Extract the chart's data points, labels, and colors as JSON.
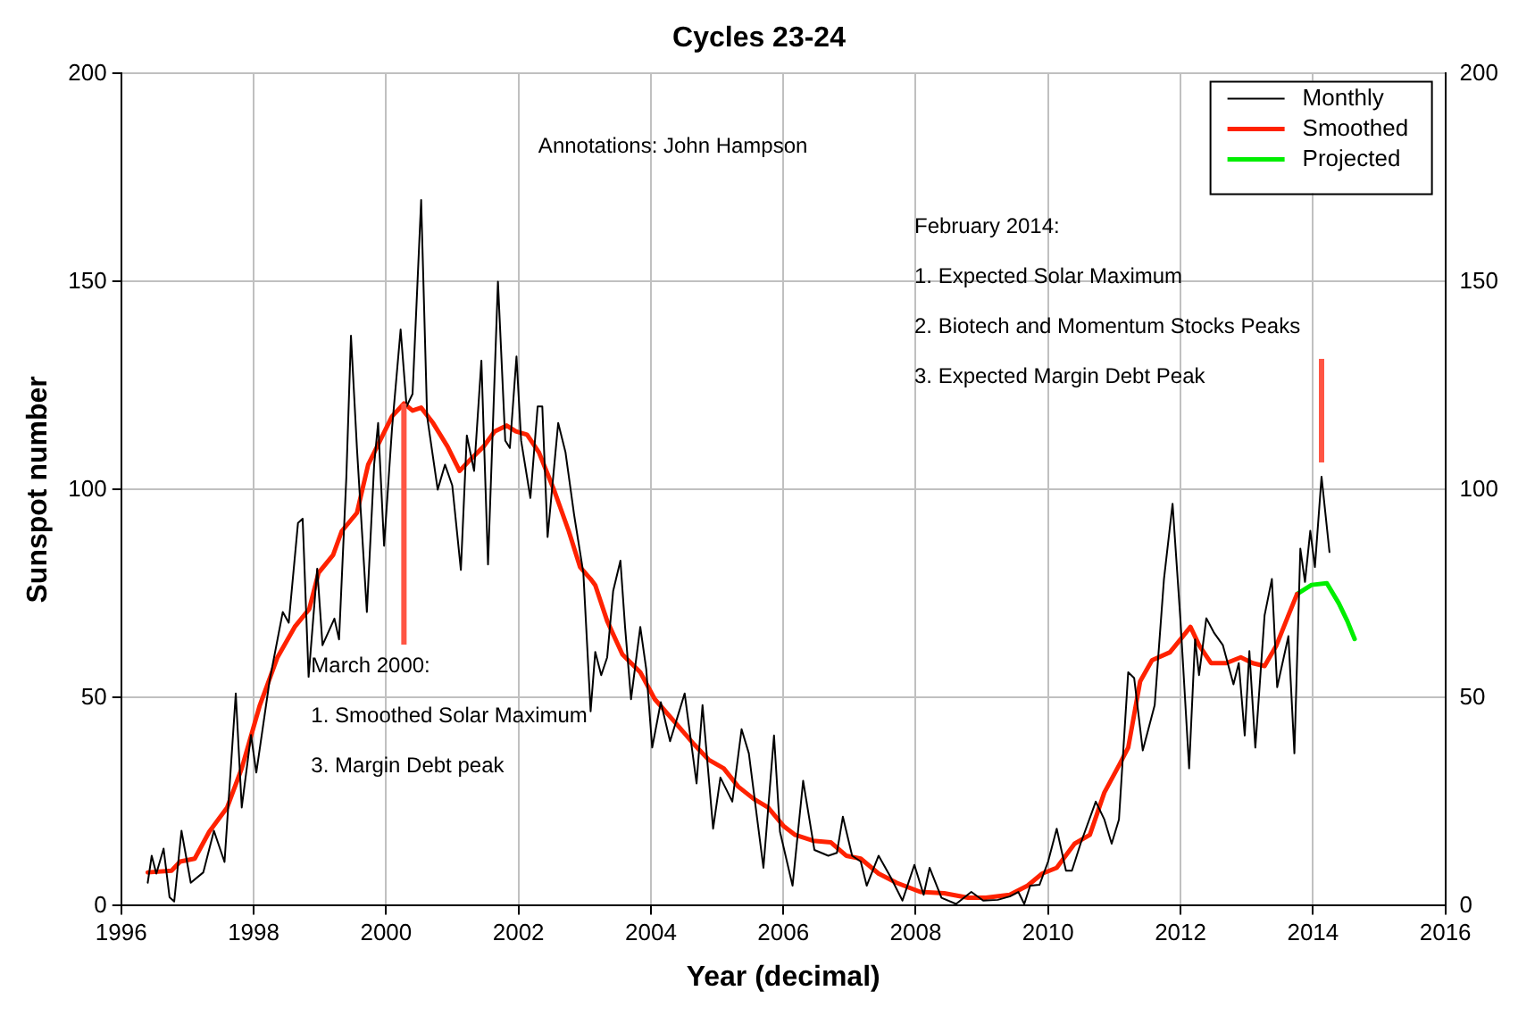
{
  "chart_data": {
    "type": "line",
    "title": "Cycles 23-24",
    "xlabel": "Year (decimal)",
    "ylabel": "Sunspot number",
    "xlim": [
      1996,
      2016
    ],
    "xticks": [
      1996,
      1998,
      2000,
      2002,
      2004,
      2006,
      2008,
      2010,
      2012,
      2014,
      2016
    ],
    "ylim": [
      0,
      200
    ],
    "yticks": [
      0,
      50,
      100,
      150,
      200
    ],
    "y2lim": [
      0,
      200
    ],
    "y2ticks": [
      0,
      50,
      100,
      150,
      200
    ],
    "grid": true,
    "legend": "top right",
    "marker": "none",
    "line_style": "solid",
    "annotations": [
      "Annotations: John Hampson",
      {
        "text": "March 2000:\n\n1. Smoothed Solar Maximum\n\n3. Margin Debt peak",
        "x": 2000.27,
        "y": 120.7
      },
      {
        "text": "February 2014:\n\n1. Expected Solar Maximum\n\n2. Biotech and Momentum Stocks Peaks\n\n3. Expected Margin Debt Peak",
        "x": 2014.13,
        "y": 103.1
      }
    ],
    "series": [
      {
        "name": "Monthly",
        "color": "#000000",
        "x": [
          1996.4,
          1996.46,
          1996.53,
          1996.64,
          1996.73,
          1996.8,
          1996.91,
          1997.05,
          1997.24,
          1997.4,
          1997.56,
          1997.73,
          1997.82,
          1997.96,
          1998.04,
          1998.24,
          1998.44,
          1998.53,
          1998.67,
          1998.74,
          1998.83,
          1998.96,
          1999.04,
          1999.22,
          1999.29,
          1999.4,
          1999.47,
          1999.56,
          1999.71,
          1999.82,
          1999.88,
          1999.97,
          2000.09,
          2000.22,
          2000.31,
          2000.4,
          2000.53,
          2000.62,
          2000.78,
          2000.89,
          2001.0,
          2001.13,
          2001.22,
          2001.33,
          2001.44,
          2001.54,
          2001.69,
          2001.8,
          2001.87,
          2001.97,
          2002.04,
          2002.18,
          2002.29,
          2002.36,
          2002.44,
          2002.6,
          2002.71,
          2002.84,
          2002.98,
          2003.09,
          2003.16,
          2003.25,
          2003.34,
          2003.43,
          2003.54,
          2003.61,
          2003.7,
          2003.84,
          2003.93,
          2004.02,
          2004.15,
          2004.29,
          2004.51,
          2004.69,
          2004.78,
          2004.94,
          2005.05,
          2005.23,
          2005.37,
          2005.48,
          2005.59,
          2005.7,
          2005.86,
          2005.95,
          2006.14,
          2006.3,
          2006.47,
          2006.68,
          2006.81,
          2006.9,
          2007.04,
          2007.17,
          2007.26,
          2007.44,
          2007.62,
          2007.8,
          2007.98,
          2008.12,
          2008.21,
          2008.39,
          2008.61,
          2008.84,
          2009.02,
          2009.24,
          2009.42,
          2009.55,
          2009.64,
          2009.73,
          2009.87,
          2010.0,
          2010.13,
          2010.27,
          2010.36,
          2010.49,
          2010.72,
          2010.85,
          2010.96,
          2011.07,
          2011.21,
          2011.3,
          2011.43,
          2011.61,
          2011.75,
          2011.88,
          2012.0,
          2012.13,
          2012.22,
          2012.28,
          2012.39,
          2012.51,
          2012.64,
          2012.8,
          2012.88,
          2012.97,
          2013.04,
          2013.13,
          2013.27,
          2013.38,
          2013.46,
          2013.63,
          2013.72,
          2013.81,
          2013.88,
          2013.96,
          2014.03,
          2014.13,
          2014.25
        ],
        "values": [
          5.5,
          12,
          7.7,
          13.7,
          2,
          1,
          18,
          5.5,
          8,
          18,
          10.5,
          51,
          23.6,
          41,
          32,
          54,
          70.6,
          68,
          92,
          93,
          55,
          81,
          62.6,
          69,
          64,
          103,
          137,
          110,
          70.6,
          106,
          116,
          86.5,
          114.7,
          138.5,
          120,
          123,
          169.6,
          117.6,
          100,
          106,
          101,
          80.7,
          113,
          104.5,
          131,
          82,
          150,
          111.8,
          110,
          132,
          111.8,
          98,
          120,
          120,
          88.6,
          116,
          109,
          94,
          80,
          46.7,
          61,
          55.4,
          59.7,
          75.6,
          82.9,
          67,
          49.6,
          67,
          56.8,
          38,
          48.9,
          39.5,
          51,
          29.4,
          48.2,
          18.5,
          30.8,
          25,
          42.4,
          36.6,
          22.8,
          9.1,
          40.9,
          17.8,
          4.8,
          30,
          13.4,
          12,
          12.7,
          21.4,
          12,
          10.6,
          4.8,
          12,
          6.9,
          1.2,
          9.8,
          2.6,
          9.1,
          1.9,
          0.4,
          3.3,
          1.2,
          1.4,
          2.2,
          3.3,
          0.4,
          4.8,
          5,
          10.6,
          18.5,
          8.4,
          8.4,
          14.9,
          25,
          20.7,
          14.9,
          20.7,
          56.1,
          54.7,
          37.3,
          48.2,
          78.5,
          96.6,
          68.4,
          33,
          64,
          55.4,
          69.1,
          65.5,
          62.6,
          53.2,
          58.3,
          40.9,
          61.2,
          38,
          69.8,
          78.5,
          52.5,
          64.8,
          36.6,
          85.8,
          77.8,
          90.1,
          81.4,
          103.1,
          85
        ]
      },
      {
        "name": "Smoothed",
        "color": "#ff2200",
        "x": [
          1996.4,
          1996.76,
          1996.89,
          1997.11,
          1997.33,
          1997.6,
          1997.82,
          1998.09,
          1998.36,
          1998.62,
          1998.84,
          1998.98,
          1999.2,
          1999.33,
          1999.56,
          1999.73,
          1999.91,
          2000.09,
          2000.27,
          2000.4,
          2000.53,
          2000.71,
          2000.93,
          2001.11,
          2001.24,
          2001.47,
          2001.64,
          2001.82,
          2001.96,
          2002.13,
          2002.31,
          2002.53,
          2002.76,
          2002.93,
          2003.09,
          2003.16,
          2003.34,
          2003.57,
          2003.84,
          2004.06,
          2004.38,
          2004.65,
          2004.87,
          2005.1,
          2005.32,
          2005.55,
          2005.77,
          2006.0,
          2006.18,
          2006.45,
          2006.72,
          2006.95,
          2007.17,
          2007.44,
          2007.71,
          2008.07,
          2008.43,
          2008.79,
          2009.06,
          2009.42,
          2009.69,
          2009.91,
          2010.13,
          2010.4,
          2010.63,
          2010.85,
          2011.07,
          2011.21,
          2011.39,
          2011.57,
          2011.84,
          2012.0,
          2012.15,
          2012.28,
          2012.46,
          2012.69,
          2012.91,
          2013.09,
          2013.27,
          2013.45,
          2013.63,
          2013.76
        ],
        "values": [
          8,
          8.4,
          10.6,
          11.3,
          17.8,
          23.6,
          33,
          48,
          59.7,
          67,
          71.3,
          80,
          84.3,
          90,
          94.4,
          106,
          111.8,
          117.6,
          120.7,
          119,
          119.7,
          116,
          110.3,
          104.5,
          106.7,
          110.3,
          114,
          115.4,
          114,
          113.2,
          108.9,
          100.2,
          90,
          81.4,
          78.5,
          77,
          68.4,
          60.4,
          56.1,
          49.6,
          43.8,
          38.8,
          35.1,
          33,
          28.6,
          25.7,
          23.6,
          19.2,
          17,
          15.6,
          15.2,
          12,
          11.3,
          7.7,
          5.5,
          3.3,
          3,
          1.9,
          1.9,
          2.6,
          4.8,
          7.7,
          9.1,
          14.9,
          17,
          27.2,
          33.7,
          38,
          53.9,
          59,
          60.9,
          64,
          67,
          62.6,
          58.3,
          58.3,
          59.7,
          58.3,
          57.6,
          62.6,
          69.8,
          74.9
        ]
      },
      {
        "name": "Projected",
        "color": "#00ee00",
        "x": [
          2013.76,
          2013.98,
          2014.21,
          2014.39,
          2014.52,
          2014.63
        ],
        "values": [
          74.9,
          77.1,
          77.5,
          72.7,
          68.4,
          64.1
        ]
      }
    ]
  }
}
